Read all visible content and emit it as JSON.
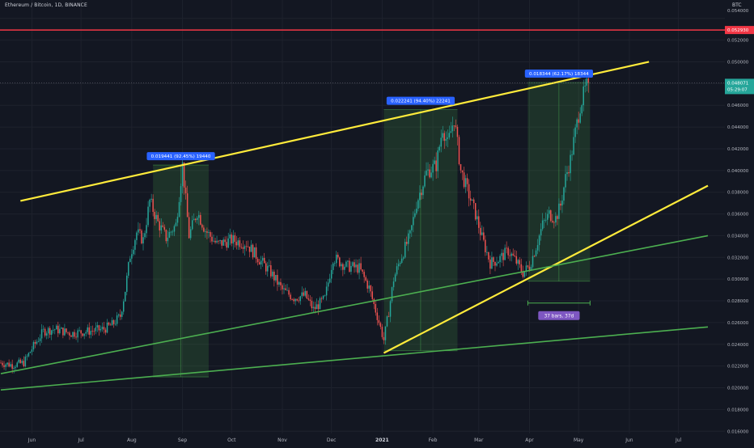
{
  "header": {
    "symbol_title": "Ethereum / Bitcoin, 1D, BINANCE",
    "currency": "BTC"
  },
  "colors": {
    "background": "#131722",
    "grid": "#1e222d",
    "candle_up": "#26a69a",
    "candle_down": "#ef5350",
    "channel_line": "#ffeb3b",
    "support_line": "#4caf50",
    "range_box": "rgba(76,175,80,0.18)",
    "horizontal_line": "#f23645",
    "callout": "#2962ff",
    "duration_label": "#7e57c2",
    "price_label_current": "#26a69a"
  },
  "chart_data": {
    "type": "candlestick",
    "y_axis": {
      "scale": "linear",
      "ylim": [
        0.0152,
        0.0548
      ],
      "ticks": [
        "0.016000",
        "0.018000",
        "0.020000",
        "0.022000",
        "0.024000",
        "0.026000",
        "0.028000",
        "0.030000",
        "0.032000",
        "0.034000",
        "0.036000",
        "0.038000",
        "0.040000",
        "0.042000",
        "0.044000",
        "0.046000",
        "0.048000",
        "0.050000",
        "0.052000",
        "0.054000"
      ]
    },
    "x_axis": {
      "ticks": [
        "Jun",
        "Jul",
        "Aug",
        "Sep",
        "Oct",
        "Nov",
        "Dec",
        "2021",
        "Feb",
        "Mar",
        "Apr",
        "May",
        "Jun",
        "Jul"
      ],
      "start": "2020-05-13",
      "end": "2021-07-19"
    },
    "price_path": [
      {
        "date": "2020-05-13",
        "value": 0.0223
      },
      {
        "date": "2020-05-20",
        "value": 0.0221
      },
      {
        "date": "2020-05-27",
        "value": 0.0223
      },
      {
        "date": "2020-06-01",
        "value": 0.0236
      },
      {
        "date": "2020-06-08",
        "value": 0.0252
      },
      {
        "date": "2020-06-15",
        "value": 0.0254
      },
      {
        "date": "2020-06-25",
        "value": 0.025
      },
      {
        "date": "2020-07-05",
        "value": 0.0252
      },
      {
        "date": "2020-07-15",
        "value": 0.0254
      },
      {
        "date": "2020-07-20",
        "value": 0.0258
      },
      {
        "date": "2020-07-25",
        "value": 0.0266
      },
      {
        "date": "2020-07-28",
        "value": 0.029
      },
      {
        "date": "2020-07-31",
        "value": 0.0322
      },
      {
        "date": "2020-08-04",
        "value": 0.0343
      },
      {
        "date": "2020-08-08",
        "value": 0.0336
      },
      {
        "date": "2020-08-12",
        "value": 0.0372
      },
      {
        "date": "2020-08-17",
        "value": 0.0352
      },
      {
        "date": "2020-08-22",
        "value": 0.0338
      },
      {
        "date": "2020-08-28",
        "value": 0.035
      },
      {
        "date": "2020-09-01",
        "value": 0.0405
      },
      {
        "date": "2020-09-05",
        "value": 0.034
      },
      {
        "date": "2020-09-10",
        "value": 0.0362
      },
      {
        "date": "2020-09-15",
        "value": 0.0345
      },
      {
        "date": "2020-09-22",
        "value": 0.0332
      },
      {
        "date": "2020-10-01",
        "value": 0.0336
      },
      {
        "date": "2020-10-10",
        "value": 0.0333
      },
      {
        "date": "2020-10-18",
        "value": 0.0318
      },
      {
        "date": "2020-10-25",
        "value": 0.0306
      },
      {
        "date": "2020-11-01",
        "value": 0.029
      },
      {
        "date": "2020-11-08",
        "value": 0.0283
      },
      {
        "date": "2020-11-15",
        "value": 0.0285
      },
      {
        "date": "2020-11-20",
        "value": 0.0272
      },
      {
        "date": "2020-11-27",
        "value": 0.0282
      },
      {
        "date": "2020-12-02",
        "value": 0.032
      },
      {
        "date": "2020-12-10",
        "value": 0.0312
      },
      {
        "date": "2020-12-18",
        "value": 0.031
      },
      {
        "date": "2020-12-24",
        "value": 0.0292
      },
      {
        "date": "2020-12-29",
        "value": 0.0266
      },
      {
        "date": "2021-01-02",
        "value": 0.0244
      },
      {
        "date": "2021-01-05",
        "value": 0.027
      },
      {
        "date": "2021-01-08",
        "value": 0.03
      },
      {
        "date": "2021-01-12",
        "value": 0.0318
      },
      {
        "date": "2021-01-18",
        "value": 0.034
      },
      {
        "date": "2021-01-22",
        "value": 0.037
      },
      {
        "date": "2021-01-28",
        "value": 0.0398
      },
      {
        "date": "2021-02-03",
        "value": 0.0405
      },
      {
        "date": "2021-02-07",
        "value": 0.044
      },
      {
        "date": "2021-02-10",
        "value": 0.0424
      },
      {
        "date": "2021-02-14",
        "value": 0.0448
      },
      {
        "date": "2021-02-18",
        "value": 0.04
      },
      {
        "date": "2021-02-22",
        "value": 0.0382
      },
      {
        "date": "2021-02-27",
        "value": 0.036
      },
      {
        "date": "2021-03-03",
        "value": 0.0338
      },
      {
        "date": "2021-03-08",
        "value": 0.0315
      },
      {
        "date": "2021-03-13",
        "value": 0.0318
      },
      {
        "date": "2021-03-19",
        "value": 0.0326
      },
      {
        "date": "2021-03-23",
        "value": 0.0318
      },
      {
        "date": "2021-03-28",
        "value": 0.0306
      },
      {
        "date": "2021-04-01",
        "value": 0.0312
      },
      {
        "date": "2021-04-05",
        "value": 0.033
      },
      {
        "date": "2021-04-09",
        "value": 0.035
      },
      {
        "date": "2021-04-13",
        "value": 0.036
      },
      {
        "date": "2021-04-17",
        "value": 0.0356
      },
      {
        "date": "2021-04-20",
        "value": 0.0368
      },
      {
        "date": "2021-04-23",
        "value": 0.0393
      },
      {
        "date": "2021-04-26",
        "value": 0.041
      },
      {
        "date": "2021-04-29",
        "value": 0.0435
      },
      {
        "date": "2021-05-02",
        "value": 0.046
      },
      {
        "date": "2021-05-05",
        "value": 0.0474
      },
      {
        "date": "2021-05-07",
        "value": 0.0481
      }
    ],
    "trendlines": [
      {
        "color": "yellow",
        "from": {
          "date": "2020-05-25",
          "value": 0.0372
        },
        "to": {
          "date": "2021-06-13",
          "value": 0.05
        }
      },
      {
        "color": "yellow",
        "from": {
          "date": "2021-01-02",
          "value": 0.0232
        },
        "to": {
          "date": "2021-07-19",
          "value": 0.0386
        }
      },
      {
        "color": "green",
        "from": {
          "date": "2020-05-13",
          "value": 0.0213
        },
        "to": {
          "date": "2021-07-19",
          "value": 0.034
        }
      },
      {
        "color": "green",
        "from": {
          "date": "2020-05-13",
          "value": 0.0198
        },
        "to": {
          "date": "2021-07-19",
          "value": 0.0256
        }
      }
    ],
    "ranges": [
      {
        "start": "2020-08-14",
        "end": "2020-09-17",
        "low": 0.021,
        "high": 0.0405,
        "label": "0.019441 (92.45%) 19440"
      },
      {
        "start": "2021-01-02",
        "end": "2021-02-16",
        "low": 0.0234,
        "high": 0.0456,
        "label": "0.022241 (94.40%) 22241"
      },
      {
        "start": "2021-03-31",
        "end": "2021-05-08",
        "low": 0.0298,
        "high": 0.0481,
        "label": "0.018344 (62.17%) 18344"
      }
    ],
    "duration_marker": {
      "start": "2021-03-31",
      "end": "2021-05-08",
      "value": 0.0278,
      "label": "37 bars, 37d"
    },
    "horizontal_line": {
      "value": 0.05293,
      "label": "0.052930"
    },
    "top_tick_value": "0.054000",
    "current_price": {
      "value": 0.048071,
      "label": "0.048071",
      "countdown": "05:29:07"
    }
  }
}
